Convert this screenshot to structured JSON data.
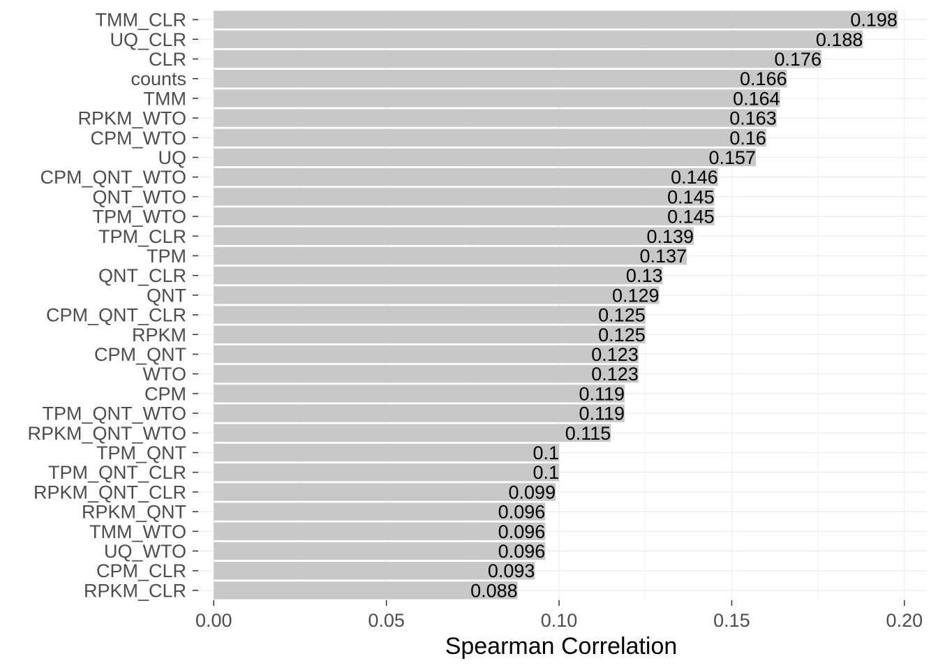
{
  "chart_data": {
    "type": "bar",
    "orientation": "horizontal",
    "title": "",
    "xlabel": "Spearman Correlation",
    "ylabel": "",
    "xlim": [
      -0.0045,
      0.2065
    ],
    "x_ticks": [
      0.0,
      0.05,
      0.1,
      0.15,
      0.2
    ],
    "x_tick_labels": [
      "0.00",
      "0.05",
      "0.10",
      "0.15",
      "0.20"
    ],
    "grid": true,
    "bar_color": "#c8c8c8",
    "categories": [
      "TMM_CLR",
      "UQ_CLR",
      "CLR",
      "counts",
      "TMM",
      "RPKM_WTO",
      "CPM_WTO",
      "UQ",
      "CPM_QNT_WTO",
      "QNT_WTO",
      "TPM_WTO",
      "TPM_CLR",
      "TPM",
      "QNT_CLR",
      "QNT",
      "CPM_QNT_CLR",
      "RPKM",
      "CPM_QNT",
      "WTO",
      "CPM",
      "TPM_QNT_WTO",
      "RPKM_QNT_WTO",
      "TPM_QNT",
      "TPM_QNT_CLR",
      "RPKM_QNT_CLR",
      "RPKM_QNT",
      "TMM_WTO",
      "UQ_WTO",
      "CPM_CLR",
      "RPKM_CLR"
    ],
    "values": [
      0.198,
      0.188,
      0.176,
      0.166,
      0.164,
      0.163,
      0.16,
      0.157,
      0.146,
      0.145,
      0.145,
      0.139,
      0.137,
      0.13,
      0.129,
      0.125,
      0.125,
      0.123,
      0.123,
      0.119,
      0.119,
      0.115,
      0.1,
      0.1,
      0.099,
      0.096,
      0.096,
      0.096,
      0.093,
      0.088
    ],
    "value_labels": [
      "0.198",
      "0.188",
      "0.176",
      "0.166",
      "0.164",
      "0.163",
      "0.16",
      "0.157",
      "0.146",
      "0.145",
      "0.145",
      "0.139",
      "0.137",
      "0.13",
      "0.129",
      "0.125",
      "0.125",
      "0.123",
      "0.123",
      "0.119",
      "0.119",
      "0.115",
      "0.1",
      "0.1",
      "0.099",
      "0.096",
      "0.096",
      "0.096",
      "0.093",
      "0.088"
    ]
  }
}
